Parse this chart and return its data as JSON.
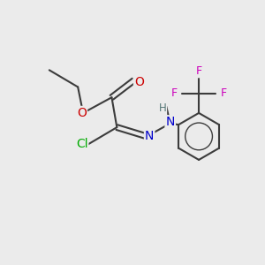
{
  "background_color": "#ebebeb",
  "bond_color": "#3c3c3c",
  "atom_colors": {
    "O": "#cc0000",
    "N": "#0000cc",
    "Cl": "#00aa00",
    "F": "#cc00bb",
    "H": "#557777",
    "C": "#3c3c3c"
  },
  "font_size": 10,
  "fig_size": [
    3.0,
    3.0
  ],
  "dpi": 100
}
